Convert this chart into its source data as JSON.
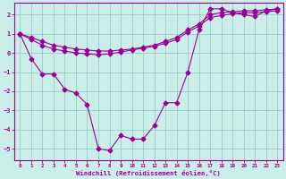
{
  "xlabel": "Windchill (Refroidissement éolien,°C)",
  "bg_color": "#cceee8",
  "grid_color": "#99cccc",
  "line_color": "#990099",
  "markersize": 2.5,
  "xlim": [
    -0.5,
    23.5
  ],
  "ylim": [
    -5.6,
    2.6
  ],
  "xticks": [
    0,
    1,
    2,
    3,
    4,
    5,
    6,
    7,
    8,
    9,
    10,
    11,
    12,
    13,
    14,
    15,
    16,
    17,
    18,
    19,
    20,
    21,
    22,
    23
  ],
  "yticks": [
    -5,
    -4,
    -3,
    -2,
    -1,
    0,
    1,
    2
  ],
  "main_x": [
    0,
    1,
    2,
    3,
    4,
    5,
    6,
    7,
    8,
    9,
    10,
    11,
    12,
    13,
    14,
    15,
    16,
    17,
    18,
    19,
    20,
    21,
    22,
    23
  ],
  "main_y": [
    1.0,
    -0.3,
    -1.1,
    -1.1,
    -1.9,
    -2.1,
    -2.7,
    -5.0,
    -5.1,
    -4.3,
    -4.5,
    -4.5,
    -3.8,
    -2.6,
    -2.6,
    -1.0,
    1.2,
    2.3,
    2.3,
    2.1,
    2.0,
    1.9,
    2.2,
    2.3
  ],
  "diag1_x": [
    0,
    1,
    2,
    3,
    4,
    5,
    6,
    7,
    8,
    9,
    10,
    11,
    12,
    13,
    14,
    15,
    16,
    17,
    18,
    19,
    20,
    21,
    22,
    23
  ],
  "diag1_y": [
    1.0,
    0.8,
    0.6,
    0.4,
    0.3,
    0.2,
    0.15,
    0.1,
    0.1,
    0.15,
    0.2,
    0.3,
    0.4,
    0.6,
    0.8,
    1.2,
    1.5,
    2.0,
    2.1,
    2.15,
    2.2,
    2.2,
    2.25,
    2.3
  ],
  "diag2_x": [
    0,
    1,
    2,
    3,
    4,
    5,
    6,
    7,
    8,
    9,
    10,
    11,
    12,
    13,
    14,
    15,
    16,
    17,
    18,
    19,
    20,
    21,
    22,
    23
  ],
  "diag2_y": [
    1.0,
    0.7,
    0.4,
    0.2,
    0.1,
    0.0,
    -0.05,
    -0.1,
    -0.05,
    0.05,
    0.15,
    0.25,
    0.35,
    0.5,
    0.7,
    1.1,
    1.4,
    1.85,
    1.95,
    2.05,
    2.1,
    2.1,
    2.15,
    2.2
  ]
}
